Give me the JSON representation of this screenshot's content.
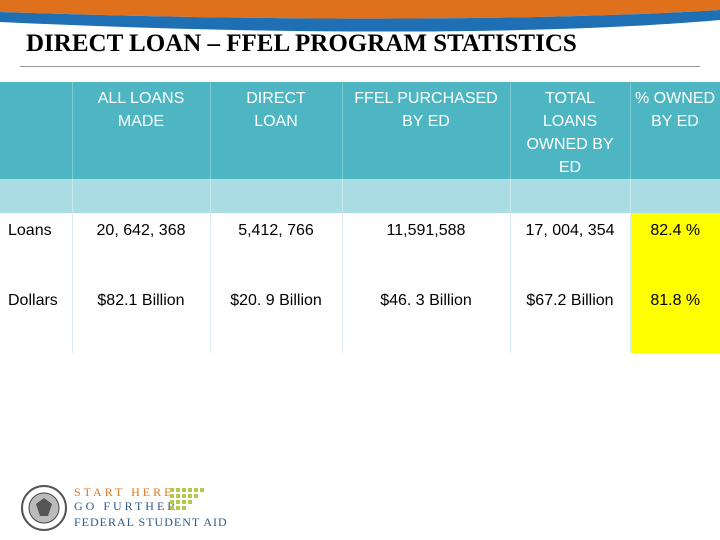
{
  "header": {
    "title": "DIRECT LOAN – FFEL PROGRAM STATISTICS"
  },
  "table": {
    "columns": [
      "ALL LOANS MADE",
      "DIRECT LOAN",
      "FFEL PURCHASED BY ED",
      "TOTAL LOANS OWNED BY ED",
      "% OWNED BY ED"
    ],
    "rows": [
      {
        "label": "Loans",
        "cells": [
          "20, 642, 368",
          "5,412, 766",
          "11,591,588",
          "17, 004, 354",
          "82.4 %"
        ]
      },
      {
        "label": "Dollars",
        "cells": [
          "$82.1 Billion",
          "$20. 9 Billion",
          "$46. 3 Billion",
          "$67.2 Billion",
          "81.8 %"
        ]
      }
    ]
  },
  "footer": {
    "logo_line1": "START HERE",
    "logo_line2": "GO FURTHER",
    "logo_line3": "FEDERAL STUDENT AID"
  }
}
